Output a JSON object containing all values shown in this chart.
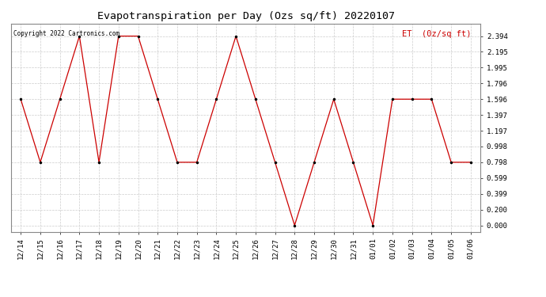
{
  "title": "Evapotranspiration per Day (Ozs sq/ft) 20220107",
  "copyright": "Copyright 2022 Cartronics.com",
  "legend_label": "ET  (0z/sq ft)",
  "x_labels": [
    "12/14",
    "12/15",
    "12/16",
    "12/17",
    "12/18",
    "12/19",
    "12/20",
    "12/21",
    "12/22",
    "12/23",
    "12/24",
    "12/25",
    "12/26",
    "12/27",
    "12/28",
    "12/29",
    "12/30",
    "12/31",
    "01/01",
    "01/02",
    "01/03",
    "01/04",
    "01/05",
    "01/06"
  ],
  "y_values": [
    1.596,
    0.798,
    1.596,
    2.394,
    0.798,
    2.394,
    2.394,
    1.596,
    0.798,
    0.798,
    1.596,
    2.394,
    1.596,
    0.798,
    0.0,
    0.798,
    1.596,
    0.798,
    0.0,
    1.596,
    1.596,
    1.596,
    0.798,
    0.798
  ],
  "y_ticks": [
    0.0,
    0.2,
    0.399,
    0.599,
    0.798,
    0.998,
    1.197,
    1.397,
    1.596,
    1.796,
    1.995,
    2.195,
    2.394
  ],
  "line_color": "#cc0000",
  "marker_color": "#000000",
  "grid_color": "#cccccc",
  "background_color": "#ffffff",
  "title_fontsize": 9.5,
  "tick_fontsize": 6.5,
  "copyright_fontsize": 5.5,
  "legend_fontsize": 7.5,
  "ylim": [
    -0.08,
    2.55
  ]
}
